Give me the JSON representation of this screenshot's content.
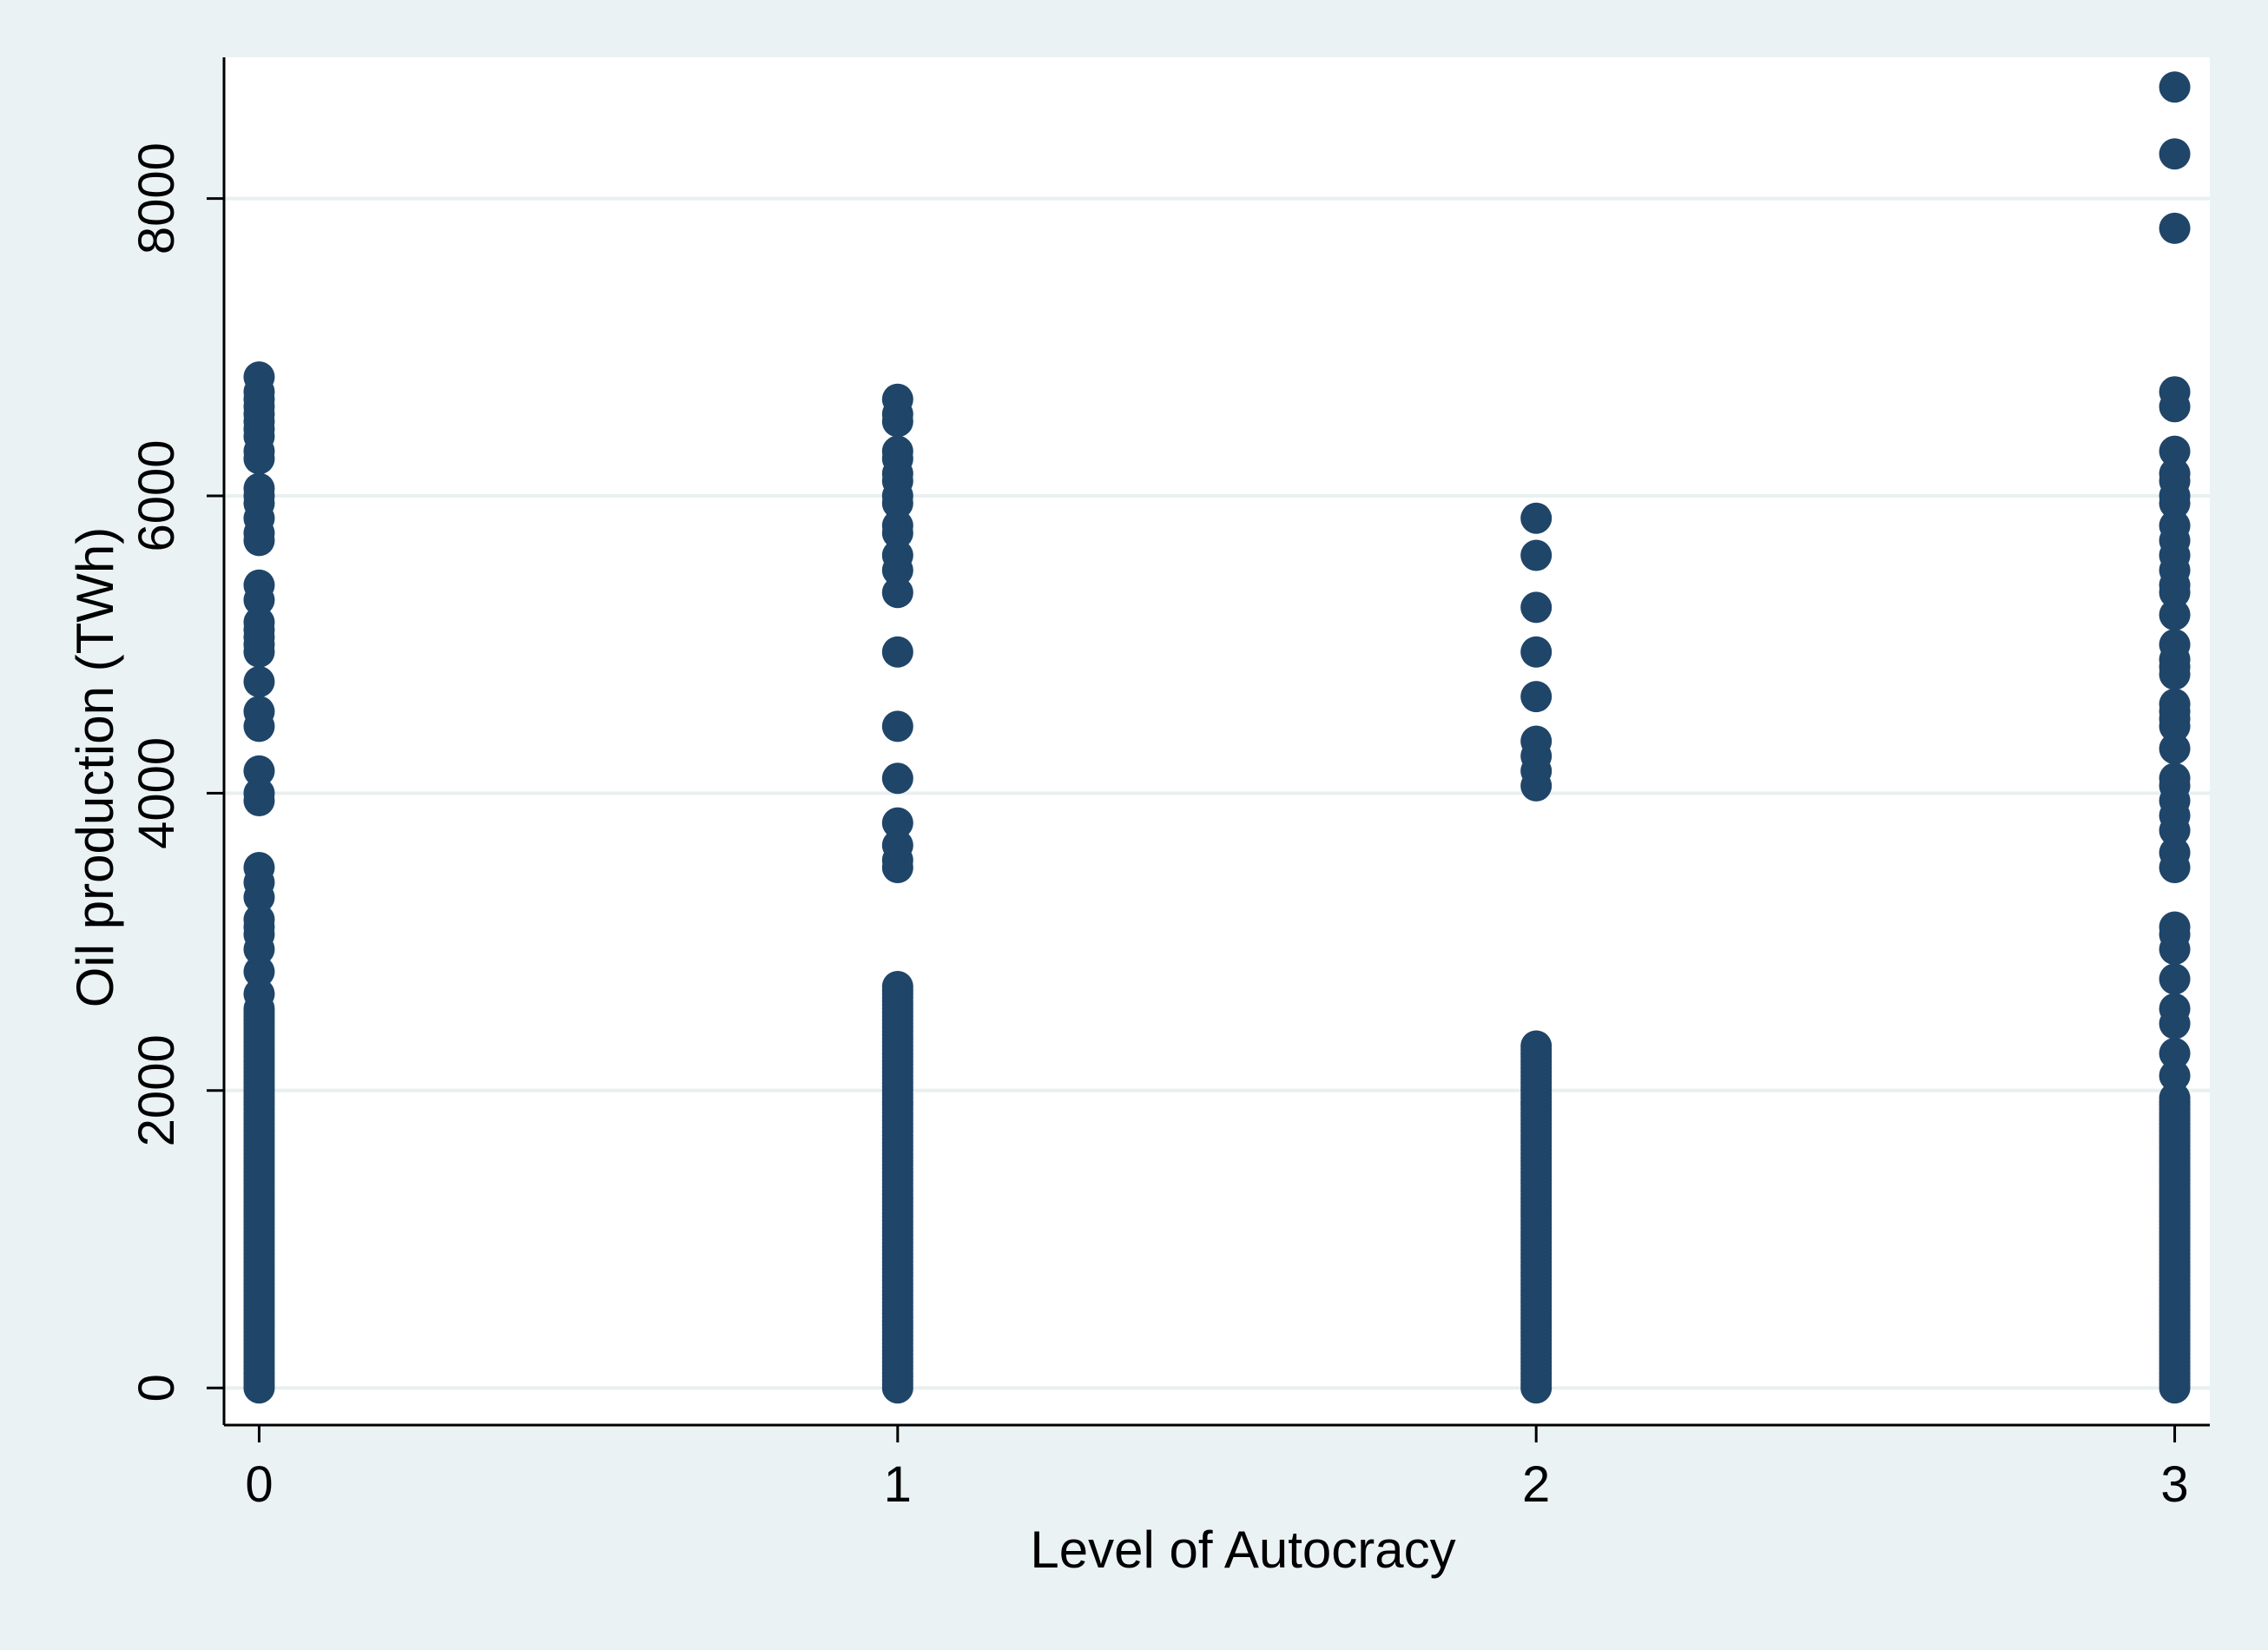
{
  "chart_data": {
    "type": "scatter",
    "title": "",
    "xlabel": "Level of Autocracy",
    "ylabel": "Oil production (TWh)",
    "xlim": [
      -0.055,
      3.055
    ],
    "ylim": [
      -250,
      8950
    ],
    "x_ticks": [
      0,
      1,
      2,
      3
    ],
    "y_ticks": [
      0,
      2000,
      4000,
      6000,
      8000
    ],
    "grid": true,
    "legend": "none",
    "colors": {
      "marker": "#1f4569",
      "plot_background": "#ffffff",
      "outer_background": "#eaf2f3",
      "gridline": "#e8f0f0",
      "axis": "#000000"
    },
    "series": [
      {
        "x": 0,
        "y_dense_range": [
          0,
          2550
        ],
        "y_outliers": [
          2650,
          2800,
          2950,
          3050,
          3100,
          3150,
          3300,
          3400,
          3500,
          3950,
          4000,
          4150,
          4450,
          4550,
          4750,
          4950,
          5000,
          5050,
          5100,
          5150,
          5300,
          5400,
          5700,
          5750,
          5850,
          5950,
          6000,
          6050,
          6250,
          6300,
          6400,
          6450,
          6500,
          6550,
          6600,
          6650,
          6700,
          6800
        ]
      },
      {
        "x": 1,
        "y_dense_range": [
          0,
          2700
        ],
        "y_outliers": [
          3500,
          3550,
          3650,
          3800,
          4100,
          4450,
          4950,
          5350,
          5500,
          5600,
          5750,
          5800,
          5950,
          6000,
          6100,
          6150,
          6250,
          6300,
          6500,
          6550,
          6650
        ]
      },
      {
        "x": 2,
        "y_dense_range": [
          0,
          2300
        ],
        "y_outliers": [
          4050,
          4150,
          4250,
          4350,
          4650,
          4950,
          5250,
          5600,
          5850
        ]
      },
      {
        "x": 3,
        "y_dense_range": [
          0,
          1950
        ],
        "y_outliers": [
          2100,
          2250,
          2450,
          2550,
          2750,
          2950,
          3050,
          3100,
          3500,
          3600,
          3750,
          3850,
          3950,
          4050,
          4100,
          4300,
          4450,
          4500,
          4550,
          4600,
          4800,
          4850,
          4900,
          5000,
          5200,
          5350,
          5400,
          5500,
          5600,
          5700,
          5800,
          5950,
          6000,
          6100,
          6150,
          6300,
          6600,
          6700,
          7800,
          8300,
          8750
        ]
      }
    ]
  }
}
